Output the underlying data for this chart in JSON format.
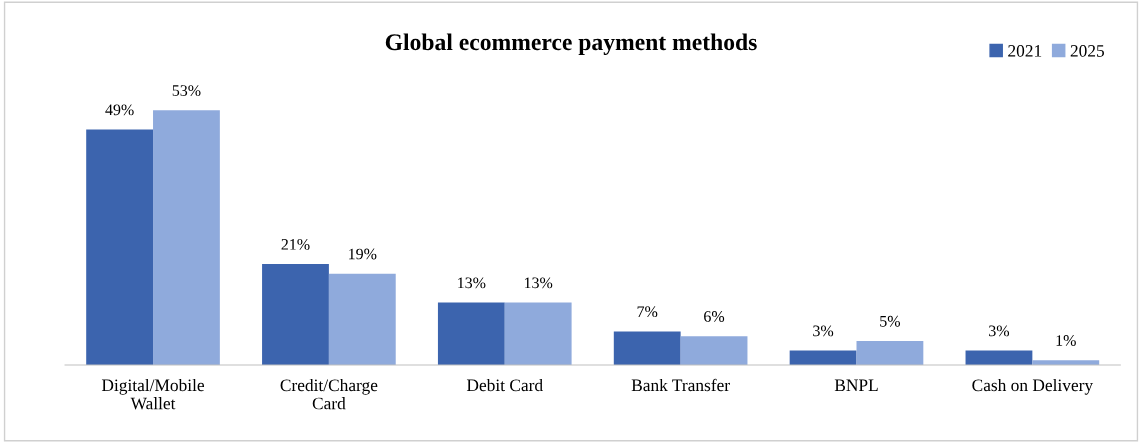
{
  "chart_data": {
    "type": "bar",
    "title": "Global ecommerce payment methods",
    "categories": [
      "Digital/Mobile Wallet",
      "Credit/Charge Card",
      "Debit Card",
      "Bank Transfer",
      "BNPL",
      "Cash on Delivery"
    ],
    "series": [
      {
        "name": "2021",
        "color": "#3c64ae",
        "values": [
          49,
          21,
          13,
          7,
          3,
          3
        ],
        "value_labels": [
          "49%",
          "21%",
          "13%",
          "7%",
          "3%",
          "3%"
        ]
      },
      {
        "name": "2025",
        "color": "#8faadc",
        "values": [
          53,
          19,
          13,
          6,
          5,
          1
        ],
        "value_labels": [
          "53%",
          "19%",
          "13%",
          "6%",
          "5%",
          "1%"
        ]
      }
    ],
    "grid": false,
    "legend": "top right"
  }
}
